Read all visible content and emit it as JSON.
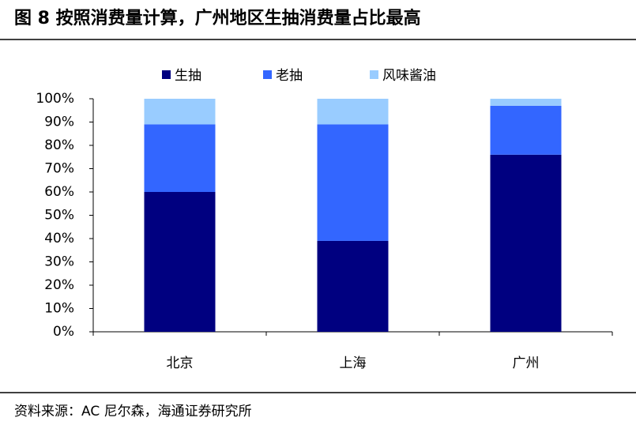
{
  "chart_data": {
    "type": "stacked_bar",
    "title": "图 8 按照消费量计算，广州地区生抽消费量占比最高",
    "source": "资料来源：AC 尼尔森，海通证券研究所",
    "categories": [
      "北京",
      "上海",
      "广州"
    ],
    "series": [
      {
        "name": "生抽",
        "color": "#000080",
        "values": [
          60,
          39,
          76
        ]
      },
      {
        "name": "老抽",
        "color": "#3366ff",
        "values": [
          29,
          50,
          21
        ]
      },
      {
        "name": "风味酱油",
        "color": "#99ccff",
        "values": [
          11,
          11,
          3
        ]
      }
    ],
    "ylim": [
      0,
      100
    ],
    "yticks": [
      {
        "value": 0,
        "label": "0%"
      },
      {
        "value": 10,
        "label": "10%"
      },
      {
        "value": 20,
        "label": "20%"
      },
      {
        "value": 30,
        "label": "30%"
      },
      {
        "value": 40,
        "label": "40%"
      },
      {
        "value": 50,
        "label": "50%"
      },
      {
        "value": 60,
        "label": "60%"
      },
      {
        "value": 70,
        "label": "70%"
      },
      {
        "value": 80,
        "label": "80%"
      },
      {
        "value": 90,
        "label": "90%"
      },
      {
        "value": 100,
        "label": "100%"
      }
    ],
    "legend": "top"
  }
}
